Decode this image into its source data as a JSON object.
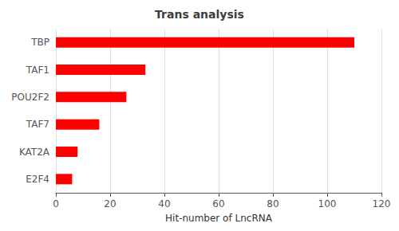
{
  "chart_data": {
    "type": "bar",
    "orientation": "horizontal",
    "title": "Trans analysis",
    "xlabel": "Hit-number of LncRNA",
    "categories": [
      "E2F4",
      "KAT2A",
      "TAF7",
      "POU2F2",
      "TAF1",
      "TBP"
    ],
    "values": [
      6,
      8,
      16,
      26,
      33,
      110
    ],
    "color": "#ff0000",
    "xlim": [
      0,
      120
    ],
    "xticks": [
      0,
      20,
      40,
      60,
      80,
      100,
      120
    ],
    "grid": true
  }
}
